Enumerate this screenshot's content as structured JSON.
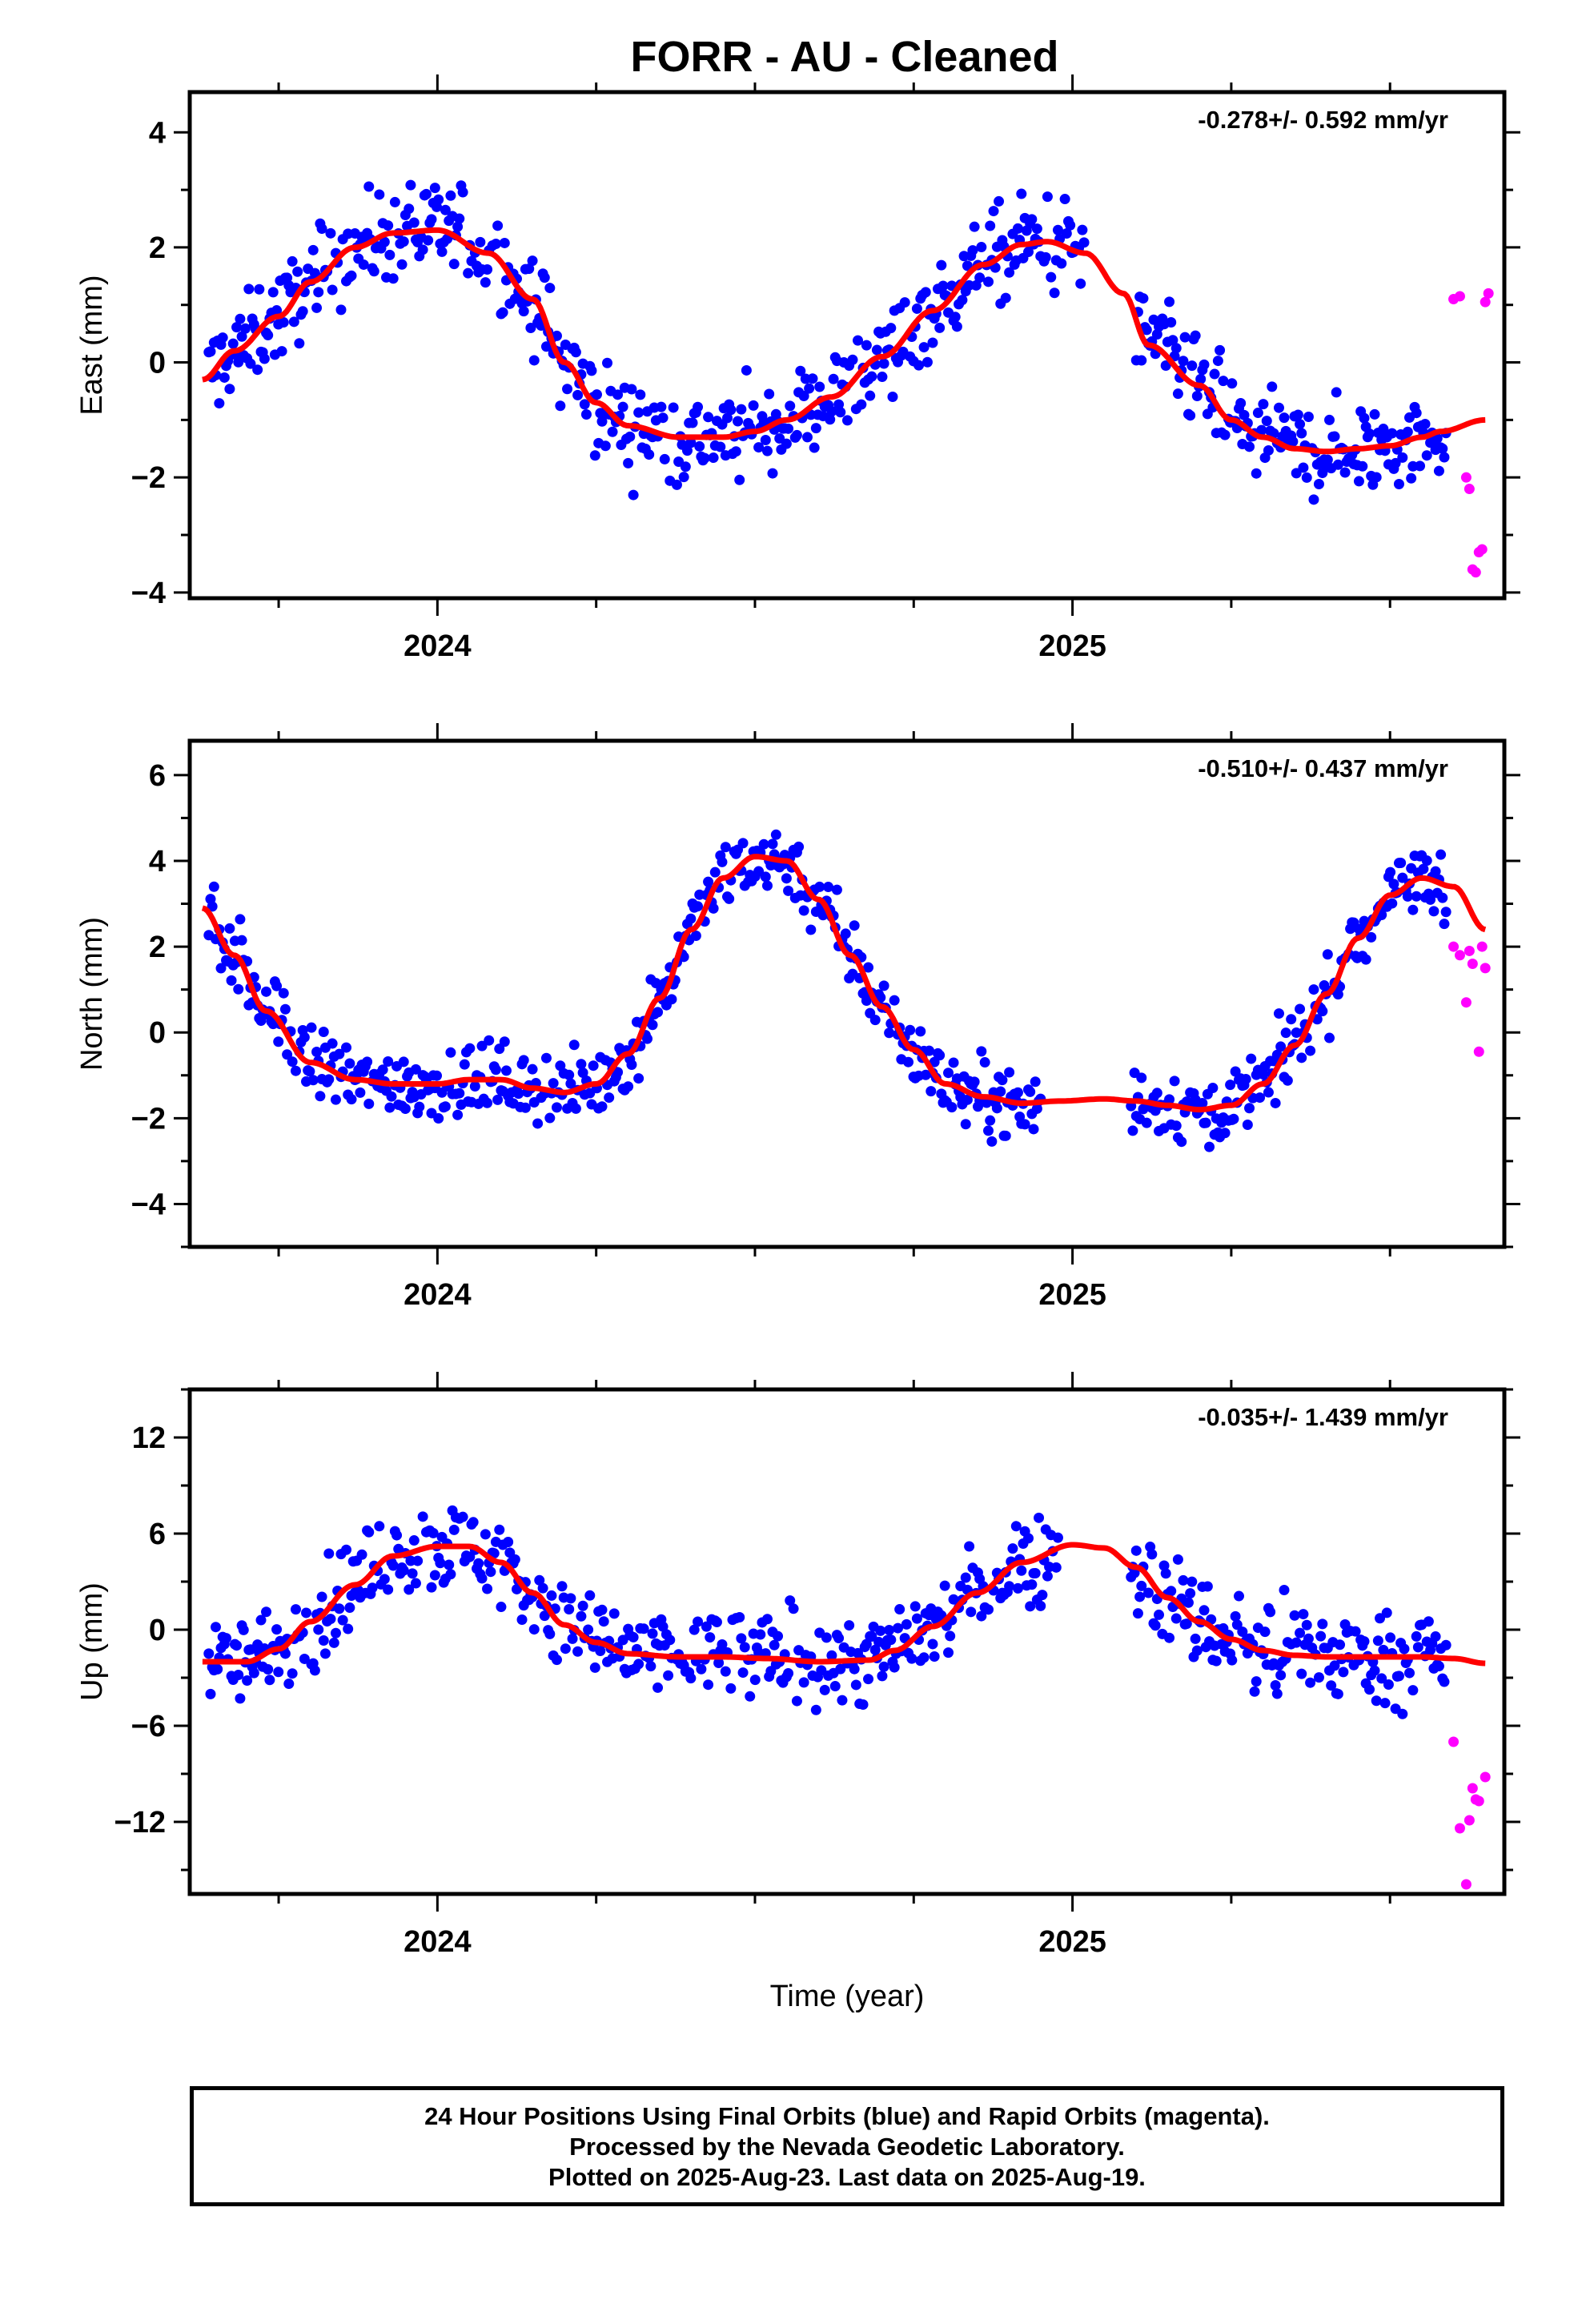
{
  "title": "FORR  - AU - Cleaned",
  "footer": {
    "line1": "24 Hour Positions Using Final Orbits (blue) and Rapid Orbits (magenta).",
    "line2": "Processed by the Nevada Geodetic Laboratory.",
    "line3": "Plotted on 2025-Aug-23. Last data on 2025-Aug-19."
  },
  "colors": {
    "final": "#0000ff",
    "rapid": "#ff00ff",
    "model": "#ff0000"
  },
  "chart_data": [
    {
      "type": "scatter",
      "ylabel": "East (mm)",
      "xlabel": "",
      "rate": "-0.278+/- 0.592 mm/yr",
      "xlim": [
        2023.61,
        2025.68
      ],
      "ylim": [
        -4.1,
        4.7
      ],
      "yticks": [
        -4,
        -2,
        0,
        2,
        4
      ],
      "xticks": [
        2024,
        2025
      ],
      "series": [
        {
          "x": [
            2023.63,
            2023.68,
            2023.75,
            2023.8,
            2023.87,
            2023.93,
            2024.0,
            2024.08,
            2024.15,
            2024.2,
            2024.25,
            2024.3,
            2024.38,
            2024.45,
            2024.5,
            2024.55,
            2024.62,
            2024.7,
            2024.78,
            2024.86,
            2024.92,
            2024.96,
            2025.02,
            2025.08,
            2025.12,
            2025.2,
            2025.25,
            2025.3,
            2025.35,
            2025.4,
            2025.45,
            2025.5,
            2025.55,
            2025.58,
            2025.65
          ],
          "y": [
            -0.3,
            0.2,
            0.8,
            1.4,
            2.0,
            2.25,
            2.3,
            1.9,
            1.1,
            0.0,
            -0.7,
            -1.1,
            -1.3,
            -1.3,
            -1.2,
            -1.0,
            -0.6,
            0.1,
            0.9,
            1.7,
            2.05,
            2.1,
            1.9,
            1.2,
            0.3,
            -0.4,
            -1.0,
            -1.3,
            -1.5,
            -1.55,
            -1.5,
            -1.45,
            -1.3,
            -1.2,
            -1.0
          ]
        }
      ],
      "rapid": {
        "x": [
          2025.6,
          2025.61,
          2025.62,
          2025.625,
          2025.63,
          2025.635,
          2025.64,
          2025.645,
          2025.65,
          2025.655
        ],
        "y": [
          1.1,
          1.15,
          -2.0,
          -2.2,
          -3.6,
          -3.65,
          -3.3,
          -3.25,
          1.05,
          1.2
        ]
      }
    },
    {
      "type": "scatter",
      "ylabel": "North (mm)",
      "xlabel": "",
      "rate": "-0.510+/- 0.437 mm/yr",
      "xlim": [
        2023.61,
        2025.68
      ],
      "ylim": [
        -5.0,
        6.8
      ],
      "yticks": [
        -4,
        -2,
        0,
        2,
        4,
        6
      ],
      "xticks": [
        2024,
        2025
      ],
      "series": [
        {
          "x": [
            2023.63,
            2023.68,
            2023.73,
            2023.8,
            2023.87,
            2023.93,
            2024.0,
            2024.05,
            2024.1,
            2024.15,
            2024.2,
            2024.25,
            2024.3,
            2024.35,
            2024.4,
            2024.45,
            2024.5,
            2024.55,
            2024.6,
            2024.65,
            2024.7,
            2024.75,
            2024.8,
            2024.86,
            2024.92,
            2024.98,
            2025.05,
            2025.1,
            2025.15,
            2025.2,
            2025.25,
            2025.3,
            2025.35,
            2025.4,
            2025.45,
            2025.5,
            2025.55,
            2025.6,
            2025.65
          ],
          "y": [
            2.9,
            1.8,
            0.5,
            -0.7,
            -1.1,
            -1.2,
            -1.2,
            -1.1,
            -1.1,
            -1.3,
            -1.4,
            -1.2,
            -0.5,
            0.8,
            2.4,
            3.6,
            4.1,
            4.0,
            3.1,
            1.8,
            0.6,
            -0.4,
            -1.2,
            -1.5,
            -1.65,
            -1.6,
            -1.55,
            -1.6,
            -1.7,
            -1.8,
            -1.7,
            -1.2,
            -0.3,
            0.9,
            2.2,
            3.2,
            3.6,
            3.4,
            2.4
          ]
        }
      ],
      "rapid": {
        "x": [
          2025.6,
          2025.61,
          2025.62,
          2025.625,
          2025.63,
          2025.64,
          2025.645,
          2025.65
        ],
        "y": [
          2.0,
          1.8,
          0.7,
          1.9,
          1.6,
          -0.45,
          2.0,
          1.5
        ]
      }
    },
    {
      "type": "scatter",
      "ylabel": "Up (mm)",
      "xlabel": "Time (year)",
      "rate": "-0.035+/- 1.439 mm/yr",
      "xlim": [
        2023.61,
        2025.68
      ],
      "ylim": [
        -16.5,
        15.0
      ],
      "yticks": [
        -12,
        -6,
        0,
        6,
        12
      ],
      "xticks": [
        2024,
        2025
      ],
      "series": [
        {
          "x": [
            2023.63,
            2023.7,
            2023.75,
            2023.8,
            2023.87,
            2023.93,
            2024.0,
            2024.05,
            2024.1,
            2024.15,
            2024.2,
            2024.25,
            2024.3,
            2024.38,
            2024.45,
            2024.52,
            2024.6,
            2024.68,
            2024.72,
            2024.78,
            2024.85,
            2024.92,
            2025.0,
            2025.05,
            2025.1,
            2025.15,
            2025.2,
            2025.25,
            2025.3,
            2025.35,
            2025.4,
            2025.45,
            2025.5,
            2025.55,
            2025.6,
            2025.65
          ],
          "y": [
            -2.0,
            -2.0,
            -1.2,
            0.5,
            2.8,
            4.6,
            5.2,
            5.2,
            4.2,
            2.3,
            0.3,
            -0.8,
            -1.5,
            -1.7,
            -1.7,
            -1.8,
            -2.0,
            -1.9,
            -1.3,
            0.2,
            2.3,
            4.2,
            5.3,
            5.1,
            3.9,
            2.0,
            0.5,
            -0.6,
            -1.3,
            -1.6,
            -1.7,
            -1.7,
            -1.7,
            -1.7,
            -1.8,
            -2.1
          ]
        }
      ],
      "rapid": {
        "x": [
          2025.6,
          2025.61,
          2025.62,
          2025.625,
          2025.63,
          2025.635,
          2025.64,
          2025.65
        ],
        "y": [
          -7.0,
          -12.4,
          -15.9,
          -11.9,
          -9.9,
          -10.6,
          -10.7,
          -9.2
        ]
      }
    }
  ]
}
